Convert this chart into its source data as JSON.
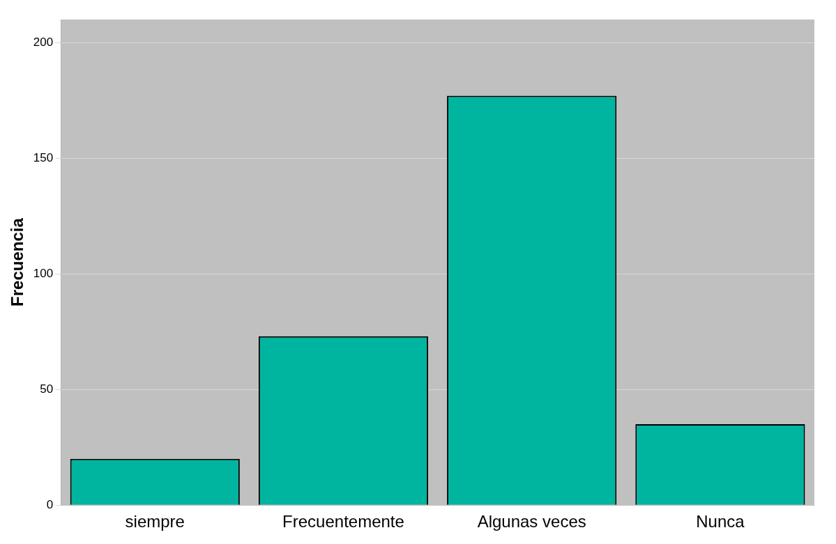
{
  "chart_data": {
    "type": "bar",
    "ylabel": "Frecuencia",
    "categories": [
      "siempre",
      "Frecuentemente",
      "Algunas veces",
      "Nunca"
    ],
    "values": [
      20,
      73,
      177,
      35
    ],
    "color": "#00b5a0",
    "ylim": [
      0,
      210
    ],
    "yticks": [
      0,
      50,
      100,
      150,
      200
    ],
    "grid": "y"
  }
}
